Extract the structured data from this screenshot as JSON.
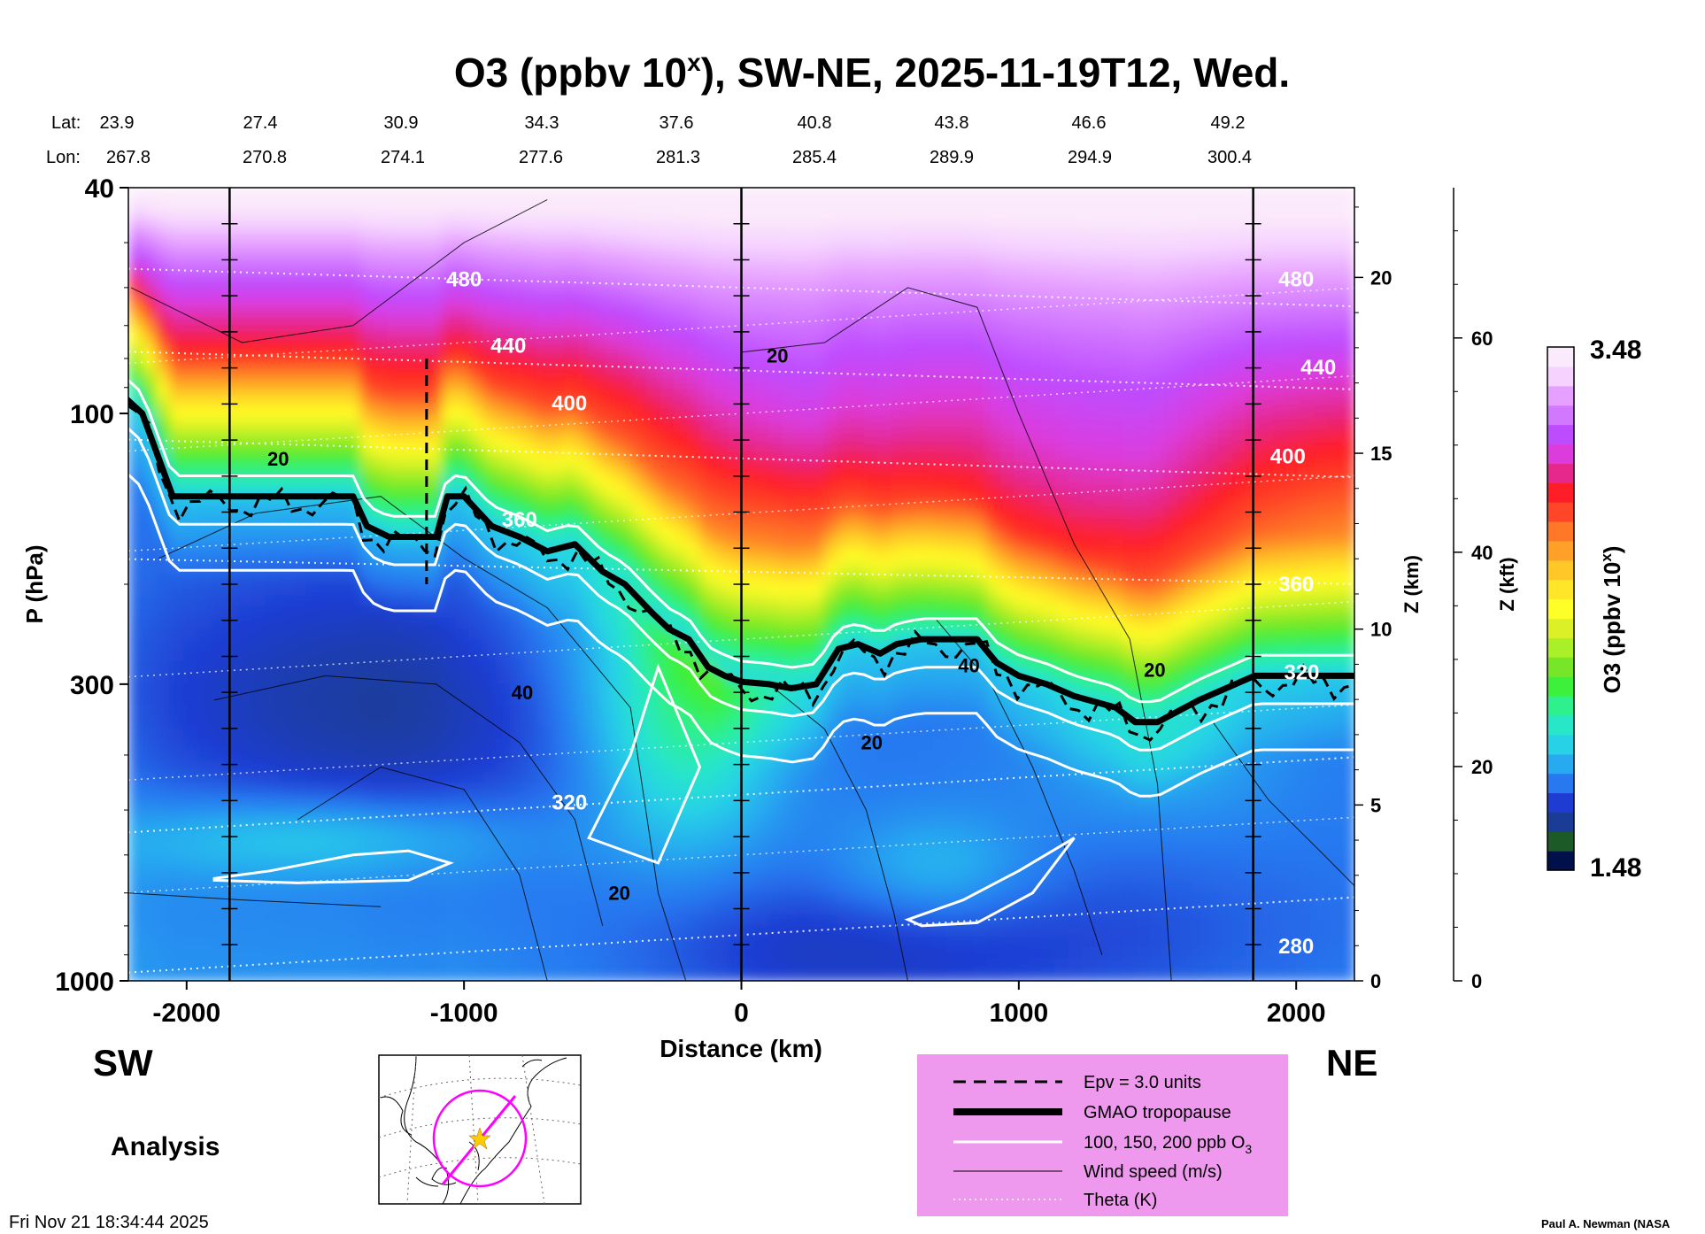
{
  "chart_data": {
    "type": "heatmap",
    "title": "O3 (ppbv 10",
    "title_sup": "x",
    "title_rest": "), SW-NE, 2025-11-19T12, Wed.",
    "lat_label": "Lat:",
    "lon_label": "Lon:",
    "lats": [
      "23.9",
      "27.4",
      "30.9",
      "34.3",
      "37.6",
      "40.8",
      "43.8",
      "46.6",
      "49.2"
    ],
    "lons": [
      "267.8",
      "270.8",
      "274.1",
      "277.6",
      "281.3",
      "285.4",
      "289.9",
      "294.9",
      "300.4"
    ],
    "station_distances_km": [
      -2195,
      -1845,
      -1385,
      -925,
      -465,
      0,
      465,
      925,
      1385,
      1845
    ],
    "xlabel": "Distance (km)",
    "xlim": [
      -2210,
      2210
    ],
    "xticks": [
      -2000,
      -1000,
      0,
      1000,
      2000
    ],
    "xtick_labels": [
      "-2000",
      "-1000",
      "0",
      "1000",
      "2000"
    ],
    "ylabel": "P (hPa)",
    "ylim_hpa": [
      1000,
      40
    ],
    "yticks_hpa": [
      40,
      100,
      300,
      1000
    ],
    "ytick_labels": [
      "40",
      "100",
      "300",
      "1000"
    ],
    "z_km_label": "Z (km)",
    "z_km_ticks": [
      0,
      5,
      10,
      15,
      20
    ],
    "z_km_tick_labels": [
      "0",
      "5",
      "10",
      "15",
      "20"
    ],
    "z_kft_label": "Z (kft)",
    "z_kft_ticks": [
      0,
      20,
      40,
      60
    ],
    "z_kft_tick_labels": [
      "0",
      "20",
      "40",
      "60"
    ],
    "direction_left": "SW",
    "direction_right": "NE",
    "run_label": "Analysis",
    "colorbar": {
      "label": "O3 (ppbv 10",
      "label_sup": "x",
      "label_end": ")",
      "min": 1.48,
      "max": 3.48,
      "min_label": "1.48",
      "max_label": "3.48",
      "colors": [
        "#00104a",
        "#1c5a28",
        "#1a3c96",
        "#1e3cd2",
        "#2878f0",
        "#28aaf0",
        "#28d2e6",
        "#28e6c8",
        "#2ef08c",
        "#3cf03c",
        "#78e628",
        "#aaf028",
        "#dcf028",
        "#ffff28",
        "#ffe628",
        "#ffc828",
        "#ffa028",
        "#ff7828",
        "#ff4628",
        "#ff1e28",
        "#e6288c",
        "#dc3cdc",
        "#be4cff",
        "#d278ff",
        "#e6a0ff",
        "#f5d2ff",
        "#fbeafb"
      ]
    },
    "theta_isentropes_K": [
      280,
      320,
      360,
      400,
      440,
      480
    ],
    "theta_labels": [
      {
        "text": "480",
        "x_km": -1000,
        "p": 58
      },
      {
        "text": "480",
        "x_km": 2000,
        "p": 58
      },
      {
        "text": "440",
        "x_km": -840,
        "p": 76
      },
      {
        "text": "440",
        "x_km": 2080,
        "p": 83
      },
      {
        "text": "400",
        "x_km": -620,
        "p": 96
      },
      {
        "text": "400",
        "x_km": 1970,
        "p": 119
      },
      {
        "text": "360",
        "x_km": -800,
        "p": 154
      },
      {
        "text": "360",
        "x_km": 2000,
        "p": 200
      },
      {
        "text": "320",
        "x_km": -620,
        "p": 485
      },
      {
        "text": "320",
        "x_km": 2020,
        "p": 286
      },
      {
        "text": "280",
        "x_km": 2000,
        "p": 870
      }
    ],
    "wind_labels": [
      {
        "text": "20",
        "x_km": 130,
        "p": 79
      },
      {
        "text": "20",
        "x_km": -1670,
        "p": 120
      },
      {
        "text": "40",
        "x_km": -790,
        "p": 310
      },
      {
        "text": "20",
        "x_km": 470,
        "p": 380
      },
      {
        "text": "40",
        "x_km": 820,
        "p": 278
      },
      {
        "text": "20",
        "x_km": 1490,
        "p": 283
      },
      {
        "text": "20",
        "x_km": -440,
        "p": 700
      }
    ],
    "tropopause_hpa": [
      {
        "x": -2220,
        "p": 94
      },
      {
        "x": -2160,
        "p": 100
      },
      {
        "x": -2050,
        "p": 140
      },
      {
        "x": -1400,
        "p": 140
      },
      {
        "x": -1350,
        "p": 158
      },
      {
        "x": -1270,
        "p": 165
      },
      {
        "x": -1100,
        "p": 165
      },
      {
        "x": -1060,
        "p": 140
      },
      {
        "x": -1000,
        "p": 140
      },
      {
        "x": -900,
        "p": 158
      },
      {
        "x": -800,
        "p": 165
      },
      {
        "x": -700,
        "p": 175
      },
      {
        "x": -600,
        "p": 170
      },
      {
        "x": -500,
        "p": 190
      },
      {
        "x": -420,
        "p": 200
      },
      {
        "x": -320,
        "p": 225
      },
      {
        "x": -260,
        "p": 240
      },
      {
        "x": -190,
        "p": 250
      },
      {
        "x": -120,
        "p": 280
      },
      {
        "x": -60,
        "p": 290
      },
      {
        "x": 0,
        "p": 297
      },
      {
        "x": 100,
        "p": 300
      },
      {
        "x": 180,
        "p": 305
      },
      {
        "x": 270,
        "p": 300
      },
      {
        "x": 350,
        "p": 260
      },
      {
        "x": 420,
        "p": 255
      },
      {
        "x": 500,
        "p": 265
      },
      {
        "x": 560,
        "p": 255
      },
      {
        "x": 650,
        "p": 250
      },
      {
        "x": 850,
        "p": 250
      },
      {
        "x": 920,
        "p": 275
      },
      {
        "x": 1000,
        "p": 290
      },
      {
        "x": 1100,
        "p": 300
      },
      {
        "x": 1200,
        "p": 315
      },
      {
        "x": 1350,
        "p": 330
      },
      {
        "x": 1420,
        "p": 350
      },
      {
        "x": 1500,
        "p": 350
      },
      {
        "x": 1650,
        "p": 320
      },
      {
        "x": 1850,
        "p": 290
      },
      {
        "x": 2210,
        "p": 290
      }
    ],
    "legend": [
      {
        "label": "Epv = 3.0 units",
        "style": "dashed"
      },
      {
        "label": "GMAO tropopause",
        "style": "thick"
      },
      {
        "label": "100, 150, 200 ppb O",
        "sub": "3",
        "style": "white"
      },
      {
        "label": "Wind speed (m/s)",
        "style": "thin"
      },
      {
        "label": "Theta (K)",
        "style": "dotted"
      }
    ],
    "legend_bg": "#ee99ee",
    "map_color": "#ff00ff",
    "map_star_color": "#ffcc00"
  },
  "footer": {
    "timestamp": "Fri Nov 21 18:34:44 2025",
    "credit": "Paul A. Newman (NASA"
  }
}
